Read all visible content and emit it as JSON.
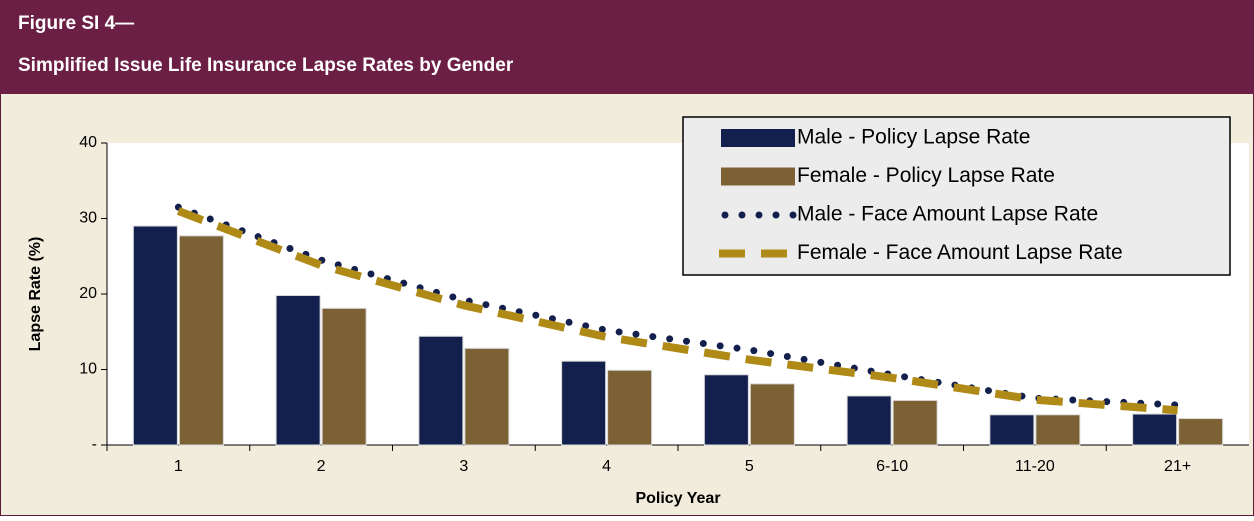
{
  "chart_data": {
    "type": "bar_line",
    "figure_label": "Figure SI 4—",
    "title": "Simplified Issue Life Insurance Lapse Rates by Gender",
    "x_label": "Policy Year",
    "y_label": "Lapse Rate (%)",
    "categories": [
      "1",
      "2",
      "3",
      "4",
      "5",
      "6-10",
      "11-20",
      "21+"
    ],
    "series": [
      {
        "name": "Male - Policy Lapse Rate",
        "kind": "bar",
        "color": "#13204d",
        "values": [
          29,
          19.8,
          14.4,
          11.1,
          9.3,
          6.5,
          4.0,
          4.1
        ]
      },
      {
        "name": "Female - Policy Lapse Rate",
        "kind": "bar",
        "color": "#7b6133",
        "values": [
          27.7,
          18.1,
          12.8,
          9.9,
          8.1,
          5.9,
          4.0,
          3.5
        ]
      },
      {
        "name": "Male - Face Amount Lapse Rate",
        "kind": "dotted",
        "color": "#13204d",
        "values": [
          31.5,
          24.5,
          19.2,
          15.2,
          12.6,
          9.3,
          6.2,
          5.3
        ]
      },
      {
        "name": "Female - Face Amount Lapse Rate",
        "kind": "dashed",
        "color": "#b08a16",
        "values": [
          31,
          23.8,
          18.5,
          14.3,
          11.3,
          8.9,
          6.0,
          4.6
        ]
      }
    ],
    "ylim": [
      0,
      40
    ],
    "yticks": [
      {
        "value": 0,
        "label": "-"
      },
      10,
      20,
      30,
      40
    ],
    "legend": "upper right"
  }
}
